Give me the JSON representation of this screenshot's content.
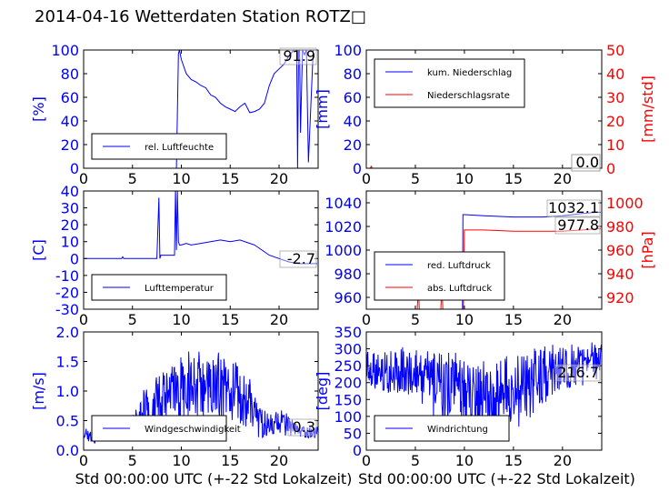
{
  "title": "2014-04-16 Wetterdaten Station ROTZ",
  "title_glyph": "□",
  "colors": {
    "blue": "#0000ff",
    "red": "#ff0000",
    "black": "#000000"
  },
  "xlabel": "Std 00:00:00 UTC (+-22 Std Lokalzeit)",
  "chart_data": [
    {
      "type": "line",
      "name": "humidity",
      "ylabel": "[%]",
      "xlim": [
        0,
        24
      ],
      "ylim": [
        0,
        100
      ],
      "xticks": [
        0,
        5,
        10,
        15,
        20
      ],
      "yticks": [
        0,
        20,
        40,
        60,
        80,
        100
      ],
      "legend": [
        "rel. Luftfeuchte"
      ],
      "legend_position": "lower-center",
      "current_value": "91.9",
      "series": [
        {
          "name": "rel. Luftfeuchte",
          "color": "#0000ff",
          "x": [
            0,
            9.5,
            9.7,
            9.8,
            10.0,
            10.5,
            11.0,
            11.5,
            12.0,
            12.5,
            13.0,
            13.5,
            14.0,
            14.5,
            15.0,
            15.5,
            16.0,
            16.5,
            17.0,
            17.5,
            18.0,
            18.5,
            19.0,
            19.5,
            20.0,
            20.5,
            21.0,
            21.5,
            21.8,
            21.9,
            22.0,
            22.1,
            22.2,
            22.4,
            22.6,
            22.8,
            23.0,
            23.5,
            23.9
          ],
          "y": [
            0,
            0,
            97,
            100,
            92,
            80,
            75,
            73,
            70,
            68,
            62,
            60,
            55,
            52,
            50,
            48,
            52,
            55,
            47,
            48,
            50,
            55,
            70,
            80,
            84,
            88,
            95,
            100,
            100,
            0,
            100,
            100,
            30,
            100,
            96,
            100,
            5,
            100,
            100
          ]
        }
      ]
    },
    {
      "type": "line",
      "name": "precipitation",
      "ylabel": "[mm]",
      "y2label": "[mm/std]",
      "xlim": [
        0,
        24
      ],
      "ylim": [
        0,
        100
      ],
      "y2lim": [
        0,
        50
      ],
      "xticks": [
        0,
        5,
        10,
        15,
        20
      ],
      "yticks": [
        0,
        20,
        40,
        60,
        80,
        100
      ],
      "y2ticks": [
        0,
        10,
        20,
        30,
        40,
        50
      ],
      "legend": [
        "kum. Niederschlag",
        "Niederschlagsrate"
      ],
      "legend_position": "upper-left",
      "current_values": [
        "0.0",
        "0.0"
      ],
      "series": [
        {
          "name": "kum. Niederschlag",
          "color": "#0000ff",
          "axis": "left",
          "x": [
            0,
            24
          ],
          "y": [
            0,
            0
          ]
        },
        {
          "name": "Niederschlagsrate",
          "color": "#ff0000",
          "axis": "right",
          "x": [
            0,
            0.4,
            0.5,
            0.6,
            24
          ],
          "y": [
            0,
            0,
            0.8,
            0,
            0
          ]
        }
      ]
    },
    {
      "type": "line",
      "name": "temperature",
      "ylabel": "[C]",
      "xlim": [
        0,
        24
      ],
      "ylim": [
        -30,
        40
      ],
      "xticks": [
        0,
        5,
        10,
        15,
        20
      ],
      "yticks": [
        -30,
        -20,
        -10,
        0,
        10,
        20,
        30,
        40
      ],
      "legend": [
        "Lufttemperatur"
      ],
      "legend_position": "lower-center",
      "current_value": "-2.7",
      "series": [
        {
          "name": "Lufttemperatur",
          "color": "#0000ff",
          "x": [
            0,
            3.9,
            4.0,
            4.1,
            7.5,
            7.7,
            7.8,
            7.9,
            8.0,
            9.3,
            9.4,
            9.5,
            9.6,
            9.7,
            9.8,
            10.0,
            10.5,
            11.0,
            12.0,
            13.0,
            14.0,
            15.0,
            16.0,
            17.0,
            17.5,
            18.0,
            18.5,
            19.0,
            20.0,
            21.0,
            22.0,
            23.0,
            23.9
          ],
          "y": [
            0,
            0,
            1,
            0,
            0,
            36,
            0,
            2,
            2,
            2,
            42,
            5,
            40,
            10,
            8,
            8,
            9,
            8,
            9,
            10,
            11,
            10,
            11,
            9,
            8,
            6,
            4,
            2,
            0,
            -2,
            -3,
            -3,
            -3
          ]
        }
      ]
    },
    {
      "type": "line",
      "name": "pressure",
      "ylabel": "",
      "y2label": "[hPa]",
      "xlim": [
        0,
        24
      ],
      "ylim": [
        950,
        1050
      ],
      "y2lim": [
        910,
        1010
      ],
      "xticks": [
        0,
        5,
        10,
        15,
        20
      ],
      "yticks": [
        960,
        980,
        1000,
        1020,
        1040
      ],
      "y2ticks": [
        920,
        940,
        960,
        980,
        1000
      ],
      "legend": [
        "red. Luftdruck",
        "abs. Luftdruck"
      ],
      "legend_position": "lower-left",
      "current_values": [
        "1032.1",
        "977.8"
      ],
      "series": [
        {
          "name": "red. Luftdruck",
          "color": "#0000ff",
          "axis": "left",
          "x": [
            9.8,
            9.85,
            10.0,
            12.0,
            15.0,
            18.0,
            20.0,
            22.0,
            23.5,
            23.9
          ],
          "y": [
            950,
            1030,
            1030,
            1029,
            1028,
            1028,
            1029,
            1031,
            1032,
            1032
          ]
        },
        {
          "name": "abs. Luftdruck",
          "color": "#ff0000",
          "axis": "right",
          "x": [
            5.2,
            5.3,
            5.4,
            7.6,
            7.7,
            7.8,
            9.9,
            10.0,
            12.0,
            15.0,
            18.0,
            20.0,
            22.0,
            23.5,
            23.9
          ],
          "y": [
            910,
            930,
            910,
            910,
            930,
            910,
            910,
            977,
            977,
            976,
            976,
            976,
            977,
            978,
            978
          ]
        }
      ]
    },
    {
      "type": "line",
      "name": "windspeed",
      "ylabel": "[m/s]",
      "xlim": [
        0,
        24
      ],
      "ylim": [
        0,
        2.0
      ],
      "xticks": [
        0,
        5,
        10,
        15,
        20
      ],
      "yticks": [
        0.0,
        0.5,
        1.0,
        1.5,
        2.0
      ],
      "legend": [
        "Windgeschwindigkeit"
      ],
      "legend_position": "lower-center",
      "current_value": "0.3",
      "series": [
        {
          "name": "Windgeschwindigkeit",
          "color": "#0000ff",
          "x": [
            0,
            1,
            2,
            3,
            4,
            5,
            6,
            7,
            8,
            9,
            10,
            11,
            12,
            13,
            14,
            15,
            16,
            17,
            18,
            19,
            20,
            21,
            22,
            23,
            24
          ],
          "y": [
            0.3,
            0.2,
            0.3,
            0.25,
            0.3,
            0.4,
            0.6,
            0.7,
            0.8,
            0.9,
            1.0,
            1.2,
            1.1,
            1.0,
            1.1,
            1.0,
            0.9,
            0.8,
            0.5,
            0.4,
            0.5,
            0.4,
            0.3,
            0.3,
            0.3
          ],
          "amplitude": [
            0.1,
            0.1,
            0.1,
            0.1,
            0.15,
            0.2,
            0.4,
            0.5,
            0.5,
            0.6,
            0.6,
            0.6,
            0.6,
            0.5,
            0.6,
            0.6,
            0.5,
            0.5,
            0.3,
            0.2,
            0.2,
            0.2,
            0.1,
            0.1,
            0.1
          ]
        }
      ]
    },
    {
      "type": "line",
      "name": "winddirection",
      "ylabel": "[deg]",
      "xlim": [
        0,
        24
      ],
      "ylim": [
        0,
        350
      ],
      "xticks": [
        0,
        5,
        10,
        15,
        20
      ],
      "yticks": [
        0,
        50,
        100,
        150,
        200,
        250,
        300,
        350
      ],
      "legend": [
        "Windrichtung"
      ],
      "legend_position": "lower-left",
      "current_value": "216.7",
      "series": [
        {
          "name": "Windrichtung",
          "color": "#0000ff",
          "x": [
            0,
            1,
            2,
            3,
            4,
            5,
            6,
            7,
            8,
            9,
            10,
            11,
            12,
            13,
            14,
            15,
            16,
            17,
            18,
            19,
            20,
            21,
            22,
            23,
            24
          ],
          "y": [
            250,
            240,
            230,
            230,
            240,
            220,
            200,
            190,
            180,
            180,
            170,
            170,
            160,
            160,
            170,
            170,
            180,
            200,
            220,
            240,
            250,
            250,
            250,
            260,
            270
          ],
          "amplitude": [
            50,
            60,
            60,
            70,
            70,
            80,
            100,
            100,
            110,
            110,
            110,
            110,
            110,
            110,
            110,
            110,
            110,
            100,
            90,
            80,
            70,
            70,
            60,
            60,
            50
          ]
        }
      ]
    }
  ]
}
